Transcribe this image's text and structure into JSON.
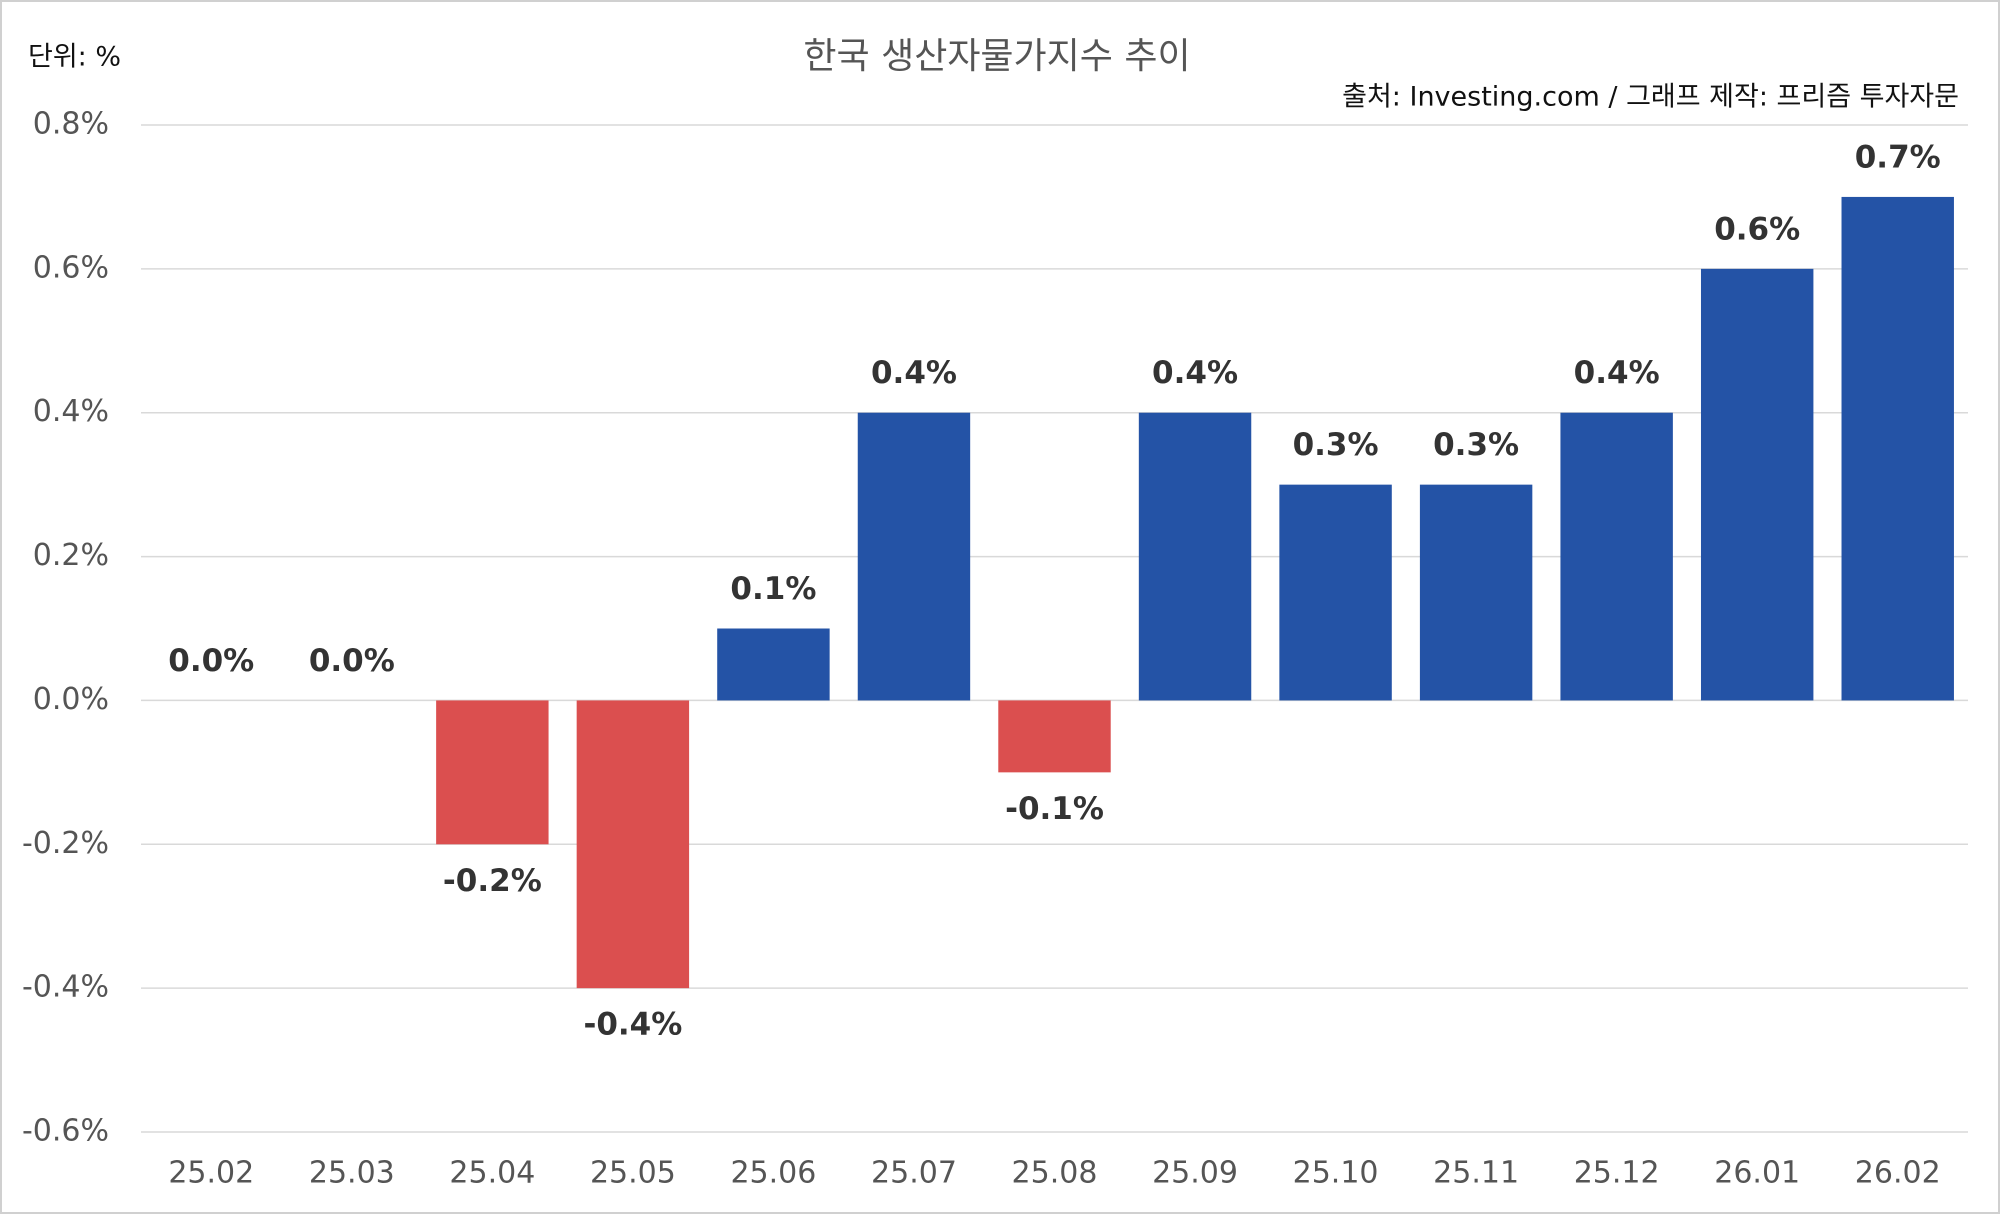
{
  "chart_data": {
    "type": "bar",
    "title": "한국 생산자물가지수 추이",
    "unit_label": "단위: %",
    "source": "출처: Investing.com / 그래프 제작: 프리즘 투자자문",
    "categories": [
      "25.02",
      "25.03",
      "25.04",
      "25.05",
      "25.06",
      "25.07",
      "25.08",
      "25.09",
      "25.10",
      "25.11",
      "25.12",
      "26.01",
      "26.02"
    ],
    "values": [
      0.0,
      0.0,
      -0.2,
      -0.4,
      0.1,
      0.4,
      -0.1,
      0.4,
      0.3,
      0.3,
      0.4,
      0.6,
      0.7
    ],
    "value_labels": [
      "0.0%",
      "0.0%",
      "-0.2%",
      "-0.4%",
      "0.1%",
      "0.4%",
      "-0.1%",
      "0.4%",
      "0.3%",
      "0.3%",
      "0.4%",
      "0.6%",
      "0.7%"
    ],
    "colors": [
      "#2453a6",
      "#2453a6",
      "#db4f4f",
      "#db4f4f",
      "#2453a6",
      "#2453a6",
      "#db4f4f",
      "#2453a6",
      "#2453a6",
      "#2453a6",
      "#2453a6",
      "#2453a6",
      "#2453a6"
    ],
    "ylim": [
      -0.6,
      0.8
    ],
    "yticks": [
      {
        "value": -0.6,
        "label": "-0.6%"
      },
      {
        "value": -0.4,
        "label": "-0.4%"
      },
      {
        "value": -0.2,
        "label": "-0.2%"
      },
      {
        "value": 0.0,
        "label": "0.0%"
      },
      {
        "value": 0.2,
        "label": "0.2%"
      },
      {
        "value": 0.4,
        "label": "0.4%"
      },
      {
        "value": 0.6,
        "label": "0.6%"
      },
      {
        "value": 0.8,
        "label": "0.8%"
      }
    ],
    "grid": true
  }
}
